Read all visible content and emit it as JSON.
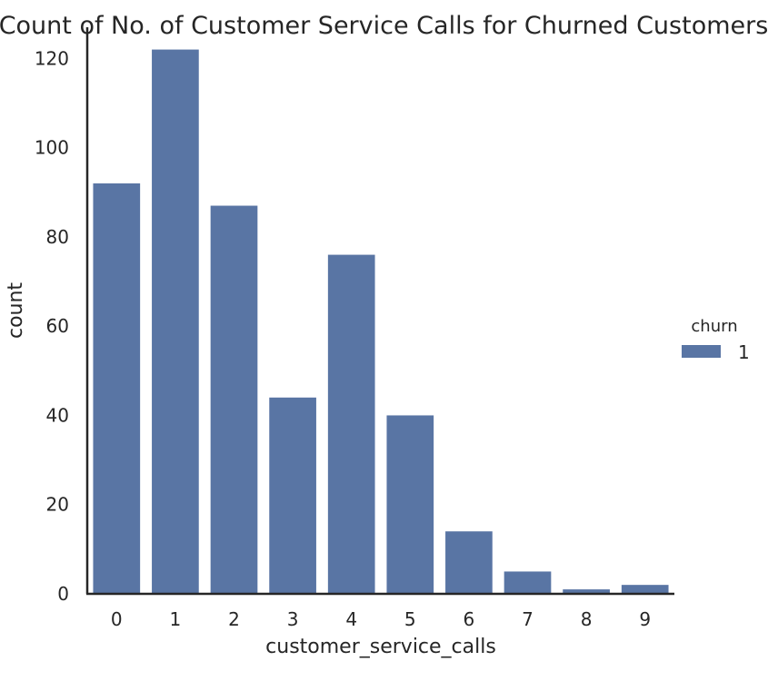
{
  "chart_data": {
    "type": "bar",
    "title": "Count of No. of Customer Service Calls for Churned Customers",
    "xlabel": "customer_service_calls",
    "ylabel": "count",
    "categories": [
      "0",
      "1",
      "2",
      "3",
      "4",
      "5",
      "6",
      "7",
      "8",
      "9"
    ],
    "series": [
      {
        "name": "1",
        "values": [
          92,
          122,
          87,
          44,
          76,
          40,
          14,
          5,
          1,
          2
        ]
      }
    ],
    "yticks": [
      "0",
      "20",
      "40",
      "60",
      "80",
      "100",
      "120"
    ],
    "ylim": [
      0,
      127
    ],
    "grid": false,
    "legend": {
      "title": "churn",
      "placement": "right"
    },
    "colors": {
      "bar": "#5975a4",
      "axis": "#262626"
    }
  }
}
